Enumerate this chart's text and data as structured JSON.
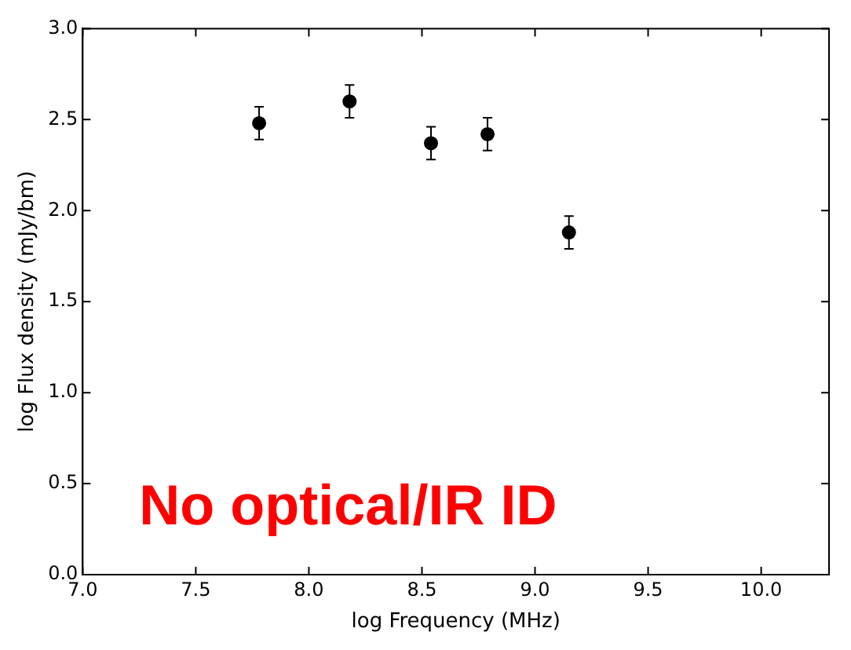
{
  "chart_data": {
    "type": "scatter",
    "xlabel": "log Frequency (MHz)",
    "ylabel": "log Flux density (mJy/bm)",
    "x": [
      7.78,
      8.18,
      8.54,
      8.79,
      9.15
    ],
    "series": [
      {
        "color": "#000000",
        "values": [
          2.48,
          2.6,
          2.37,
          2.42,
          1.88
        ],
        "errors": [
          0.09,
          0.09,
          0.09,
          0.09,
          0.09
        ]
      }
    ],
    "xlim": [
      7.0,
      10.3
    ],
    "xticks": [
      {
        "value": 7,
        "label": "7.0"
      },
      7.5,
      {
        "value": 8,
        "label": "8.0"
      },
      8.5,
      {
        "value": 9,
        "label": "9.0"
      },
      9.5,
      {
        "value": 10,
        "label": "10.0"
      }
    ],
    "ylim": [
      0,
      3
    ],
    "yticks": [
      {
        "value": 0,
        "label": "0.0"
      },
      0.5,
      {
        "value": 1,
        "label": "1.0"
      },
      1.5,
      {
        "value": 2,
        "label": "2.0"
      },
      2.5,
      {
        "value": 3,
        "label": "3.0"
      }
    ],
    "grid": false,
    "legend": false,
    "marker": "circle",
    "annotations": [
      "No optical/IR ID"
    ]
  }
}
